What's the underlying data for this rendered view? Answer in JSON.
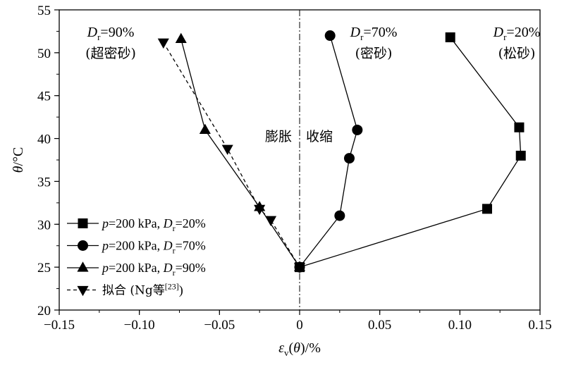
{
  "chart_data": {
    "type": "line",
    "xlabel": "εv(θ)/%",
    "ylabel": "θ/°C",
    "xlim": [
      -0.15,
      0.15
    ],
    "ylim": [
      20,
      55
    ],
    "xticks": [
      "−0.15",
      "−0.10",
      "−0.05",
      "0",
      "0.05",
      "0.10",
      "0.15"
    ],
    "xtick_values": [
      -0.15,
      -0.1,
      -0.05,
      0,
      0.05,
      0.1,
      0.15
    ],
    "yticks": [
      "20",
      "25",
      "30",
      "35",
      "40",
      "45",
      "50",
      "55"
    ],
    "ytick_values": [
      20,
      25,
      30,
      35,
      40,
      45,
      50,
      55
    ],
    "series": [
      {
        "name": "p=200 kPa, Dr=20%",
        "marker": "square",
        "dashed": false,
        "x": [
          0,
          0.117,
          0.138,
          0.137,
          0.094
        ],
        "y": [
          25,
          31.8,
          38,
          41.3,
          51.8
        ]
      },
      {
        "name": "p=200 kPa, Dr=70%",
        "marker": "circle",
        "dashed": false,
        "x": [
          0,
          0.025,
          0.031,
          0.036,
          0.019
        ],
        "y": [
          25,
          31,
          37.7,
          41,
          52
        ]
      },
      {
        "name": "p=200 kPa, Dr=90%",
        "marker": "triangle-up",
        "dashed": false,
        "x": [
          0,
          -0.025,
          -0.059,
          -0.074
        ],
        "y": [
          25,
          32,
          41,
          51.6
        ]
      },
      {
        "name": "拟合 (Ng等[23])",
        "marker": "triangle-down",
        "dashed": true,
        "x": [
          0,
          -0.018,
          -0.025,
          -0.045,
          -0.085
        ],
        "y": [
          25,
          30.5,
          31.8,
          38.8,
          51.2
        ]
      }
    ],
    "legend": {
      "placement": "lower-left",
      "entries": [
        {
          "prefix": "p",
          "mid": "=200 kPa, ",
          "d": "D",
          "sub": "r",
          "suffix": "=20%",
          "marker": "square",
          "dashed": false
        },
        {
          "prefix": "p",
          "mid": "=200 kPa, ",
          "d": "D",
          "sub": "r",
          "suffix": "=70%",
          "marker": "circle",
          "dashed": false
        },
        {
          "prefix": "p",
          "mid": "=200 kPa, ",
          "d": "D",
          "sub": "r",
          "suffix": "=90%",
          "marker": "triangle-up",
          "dashed": false
        },
        {
          "text": "拟合 (Ng等",
          "sup": "[23]",
          "tail": ")",
          "marker": "triangle-down",
          "dashed": true
        }
      ]
    },
    "annotations": {
      "dilate": "膨胀",
      "contract": "收缩",
      "dr90_line1": "=90%",
      "dr90_line2": "(超密砂)",
      "dr70_line1": "=70%",
      "dr70_line2": "(密砂)",
      "dr20_line1": "=20%",
      "dr20_line2": "(松砂)",
      "d_letter": "D",
      "d_sub": "r"
    },
    "axis_text": {
      "y_theta": "θ",
      "y_unit": "/°C",
      "x_eps": "ε",
      "x_sub": "v",
      "x_open": "(",
      "x_theta": "θ",
      "x_close": ")/%"
    }
  }
}
